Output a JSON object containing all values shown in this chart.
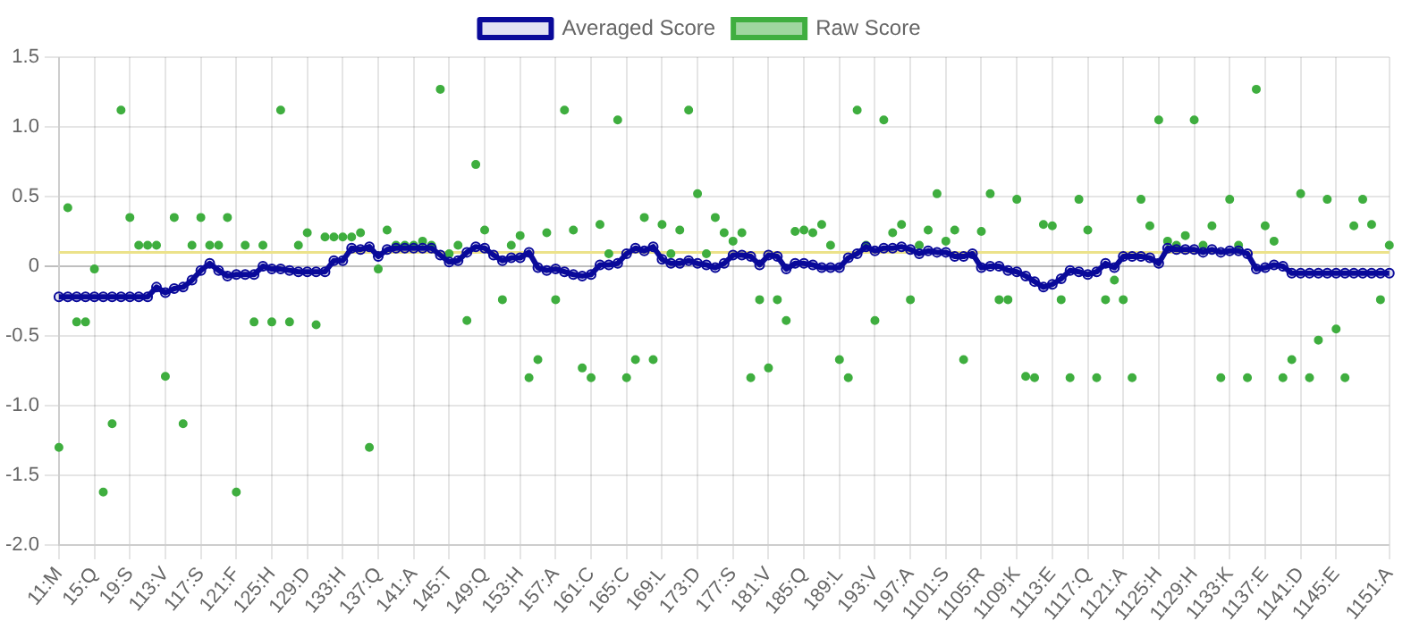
{
  "chart_data": {
    "type": "line",
    "categories": [
      "11:M",
      null,
      null,
      null,
      "15:Q",
      null,
      null,
      null,
      "19:S",
      null,
      null,
      null,
      "113:V",
      null,
      null,
      null,
      "117:S",
      null,
      null,
      null,
      "121:F",
      null,
      null,
      null,
      "125:H",
      null,
      null,
      null,
      "129:D",
      null,
      null,
      null,
      "133:H",
      null,
      null,
      null,
      "137:Q",
      null,
      null,
      null,
      "141:A",
      null,
      null,
      null,
      "145:T",
      null,
      null,
      null,
      "149:Q",
      null,
      null,
      null,
      "153:H",
      null,
      null,
      null,
      "157:A",
      null,
      null,
      null,
      "161:C",
      null,
      null,
      null,
      "165:C",
      null,
      null,
      null,
      "169:L",
      null,
      null,
      null,
      "173:D",
      null,
      null,
      null,
      "177:S",
      null,
      null,
      null,
      "181:V",
      null,
      null,
      null,
      "185:Q",
      null,
      null,
      null,
      "189:L",
      null,
      null,
      null,
      "193:V",
      null,
      null,
      null,
      "197:A",
      null,
      null,
      null,
      "1101:S",
      null,
      null,
      null,
      "1105:R",
      null,
      null,
      null,
      "1109:K",
      null,
      null,
      null,
      "1113:E",
      null,
      null,
      null,
      "1117:Q",
      null,
      null,
      null,
      "1121:A",
      null,
      null,
      null,
      "1125:H",
      null,
      null,
      null,
      "1129:H",
      null,
      null,
      null,
      "1133:K",
      null,
      null,
      null,
      "1137:E",
      null,
      null,
      null,
      "1141:D",
      null,
      null,
      null,
      "1145:E",
      null,
      null,
      null,
      null,
      null,
      "1151:A"
    ],
    "series": [
      {
        "name": "Averaged Score",
        "type": "line",
        "color": "#0a0a9a",
        "values": [
          -0.22,
          -0.22,
          -0.22,
          -0.22,
          -0.22,
          -0.22,
          -0.22,
          -0.22,
          -0.22,
          -0.22,
          -0.22,
          -0.15,
          -0.19,
          -0.16,
          -0.15,
          -0.1,
          -0.03,
          0.02,
          -0.03,
          -0.07,
          -0.06,
          -0.06,
          -0.06,
          0,
          -0.02,
          -0.02,
          -0.03,
          -0.04,
          -0.04,
          -0.04,
          -0.04,
          0.04,
          0.04,
          0.13,
          0.12,
          0.14,
          0.07,
          0.12,
          0.13,
          0.13,
          0.13,
          0.13,
          0.13,
          0.08,
          0.03,
          0.04,
          0.1,
          0.14,
          0.13,
          0.08,
          0.04,
          0.06,
          0.06,
          0.1,
          -0.01,
          -0.03,
          -0.02,
          -0.04,
          -0.06,
          -0.07,
          -0.06,
          0.01,
          0.01,
          0.02,
          0.09,
          0.13,
          0.11,
          0.14,
          0.05,
          0.02,
          0.02,
          0.04,
          0.02,
          0.01,
          -0.01,
          0.02,
          0.08,
          0.08,
          0.07,
          0.01,
          0.08,
          0.07,
          -0.02,
          0.02,
          0.02,
          0.01,
          -0.01,
          -0.01,
          -0.01,
          0.06,
          0.09,
          0.14,
          0.11,
          0.13,
          0.13,
          0.14,
          0.12,
          0.09,
          0.11,
          0.1,
          0.1,
          0.07,
          0.07,
          0.09,
          -0.01,
          0,
          0,
          -0.03,
          -0.04,
          -0.07,
          -0.11,
          -0.15,
          -0.13,
          -0.09,
          -0.03,
          -0.04,
          -0.06,
          -0.04,
          0.02,
          -0.01,
          0.07,
          0.07,
          0.07,
          0.06,
          0.02,
          0.13,
          0.12,
          0.12,
          0.12,
          0.1,
          0.12,
          0.1,
          0.11,
          0.11,
          0.09,
          -0.02,
          -0.01,
          0.01,
          0,
          -0.05,
          -0.05,
          -0.05,
          -0.05,
          -0.05,
          -0.05,
          -0.05,
          -0.05,
          -0.05,
          -0.05,
          -0.05,
          -0.05
        ]
      },
      {
        "name": "Raw Score",
        "type": "scatter",
        "color": "#3fae3f",
        "values": [
          -1.3,
          0.42,
          -0.4,
          -0.4,
          -0.02,
          -1.62,
          -1.13,
          1.12,
          0.35,
          0.15,
          0.15,
          0.15,
          -0.79,
          0.35,
          -1.13,
          0.15,
          0.35,
          0.15,
          0.15,
          0.35,
          -1.62,
          0.15,
          -0.4,
          0.15,
          -0.4,
          1.12,
          -0.4,
          0.15,
          0.24,
          -0.42,
          0.21,
          0.21,
          0.21,
          0.21,
          0.24,
          -1.3,
          -0.02,
          0.26,
          0.15,
          0.15,
          0.15,
          0.18,
          0.15,
          1.27,
          0.09,
          0.15,
          -0.39,
          0.73,
          0.26,
          null,
          -0.24,
          0.15,
          0.22,
          -0.8,
          -0.67,
          0.24,
          -0.24,
          1.12,
          0.26,
          -0.73,
          -0.8,
          0.3,
          0.09,
          1.05,
          -0.8,
          -0.67,
          0.35,
          -0.67,
          0.3,
          0.09,
          0.26,
          1.12,
          0.52,
          0.09,
          0.35,
          0.24,
          0.18,
          0.24,
          -0.8,
          -0.24,
          -0.73,
          -0.24,
          -0.39,
          0.25,
          0.26,
          0.24,
          0.3,
          0.15,
          -0.67,
          -0.8,
          1.12,
          0.15,
          -0.39,
          1.05,
          0.24,
          0.3,
          -0.24,
          0.15,
          0.26,
          0.52,
          0.18,
          0.26,
          -0.67,
          null,
          0.25,
          0.52,
          -0.24,
          -0.24,
          0.48,
          -0.79,
          -0.8,
          0.3,
          0.29,
          -0.24,
          -0.8,
          0.48,
          0.26,
          -0.8,
          -0.24,
          -0.1,
          -0.24,
          -0.8,
          0.48,
          0.29,
          1.05,
          0.18,
          0.15,
          0.22,
          1.05,
          0.15,
          0.29,
          -0.8,
          0.48,
          0.15,
          -0.8,
          1.27,
          0.29,
          0.18,
          -0.8,
          -0.67,
          0.52,
          -0.8,
          -0.53,
          0.48,
          -0.45,
          -0.8,
          0.29,
          0.48,
          0.3,
          -0.24,
          0.15
        ]
      }
    ],
    "ylim": [
      -2,
      1.5
    ],
    "yticks": [
      {
        "value": -2,
        "label": "-2.0"
      },
      {
        "value": -1.5,
        "label": "-1.5"
      },
      {
        "value": -1,
        "label": "-1.0"
      },
      {
        "value": -0.5,
        "label": "-0.5"
      },
      0,
      {
        "value": 0.5,
        "label": "0.5"
      },
      {
        "value": 1,
        "label": "1.0"
      },
      {
        "value": 1.5,
        "label": "1.5"
      }
    ],
    "ref_lines": [
      {
        "axis": "y",
        "value": 0.1,
        "color": "#ece28a"
      }
    ],
    "grid": true,
    "legend": "top",
    "marker": "circle",
    "line_style": "solid"
  }
}
